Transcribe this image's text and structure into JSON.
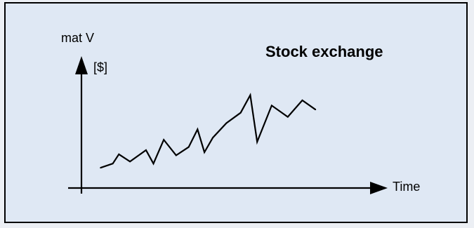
{
  "chart_data": {
    "type": "line",
    "title": "Stock exchange",
    "xlabel": "Time",
    "ylabel_line1": "mat V",
    "ylabel_line2": "[$]",
    "ylim": [
      0,
      100
    ],
    "xlim": [
      0,
      100
    ],
    "grid": false,
    "legend": "none",
    "x": [
      0,
      5.0,
      7.5,
      12.0,
      18.5,
      21.5,
      25.7,
      30.7,
      35.8,
      39.4,
      42.2,
      45.6,
      51.1,
      56.9,
      60.8,
      63.6,
      69.5,
      76.0,
      81.9,
      87.3
    ],
    "series": [
      {
        "values": [
          8,
          12,
          21,
          14,
          25,
          12,
          35,
          20,
          28,
          45,
          23,
          37,
          51,
          61,
          78,
          33,
          68,
          57,
          73,
          64
        ]
      }
    ]
  },
  "colors": {
    "panel_background": "#dfe8f4",
    "page_background": "#eceff4",
    "line": "#000000",
    "axis": "#000000"
  }
}
